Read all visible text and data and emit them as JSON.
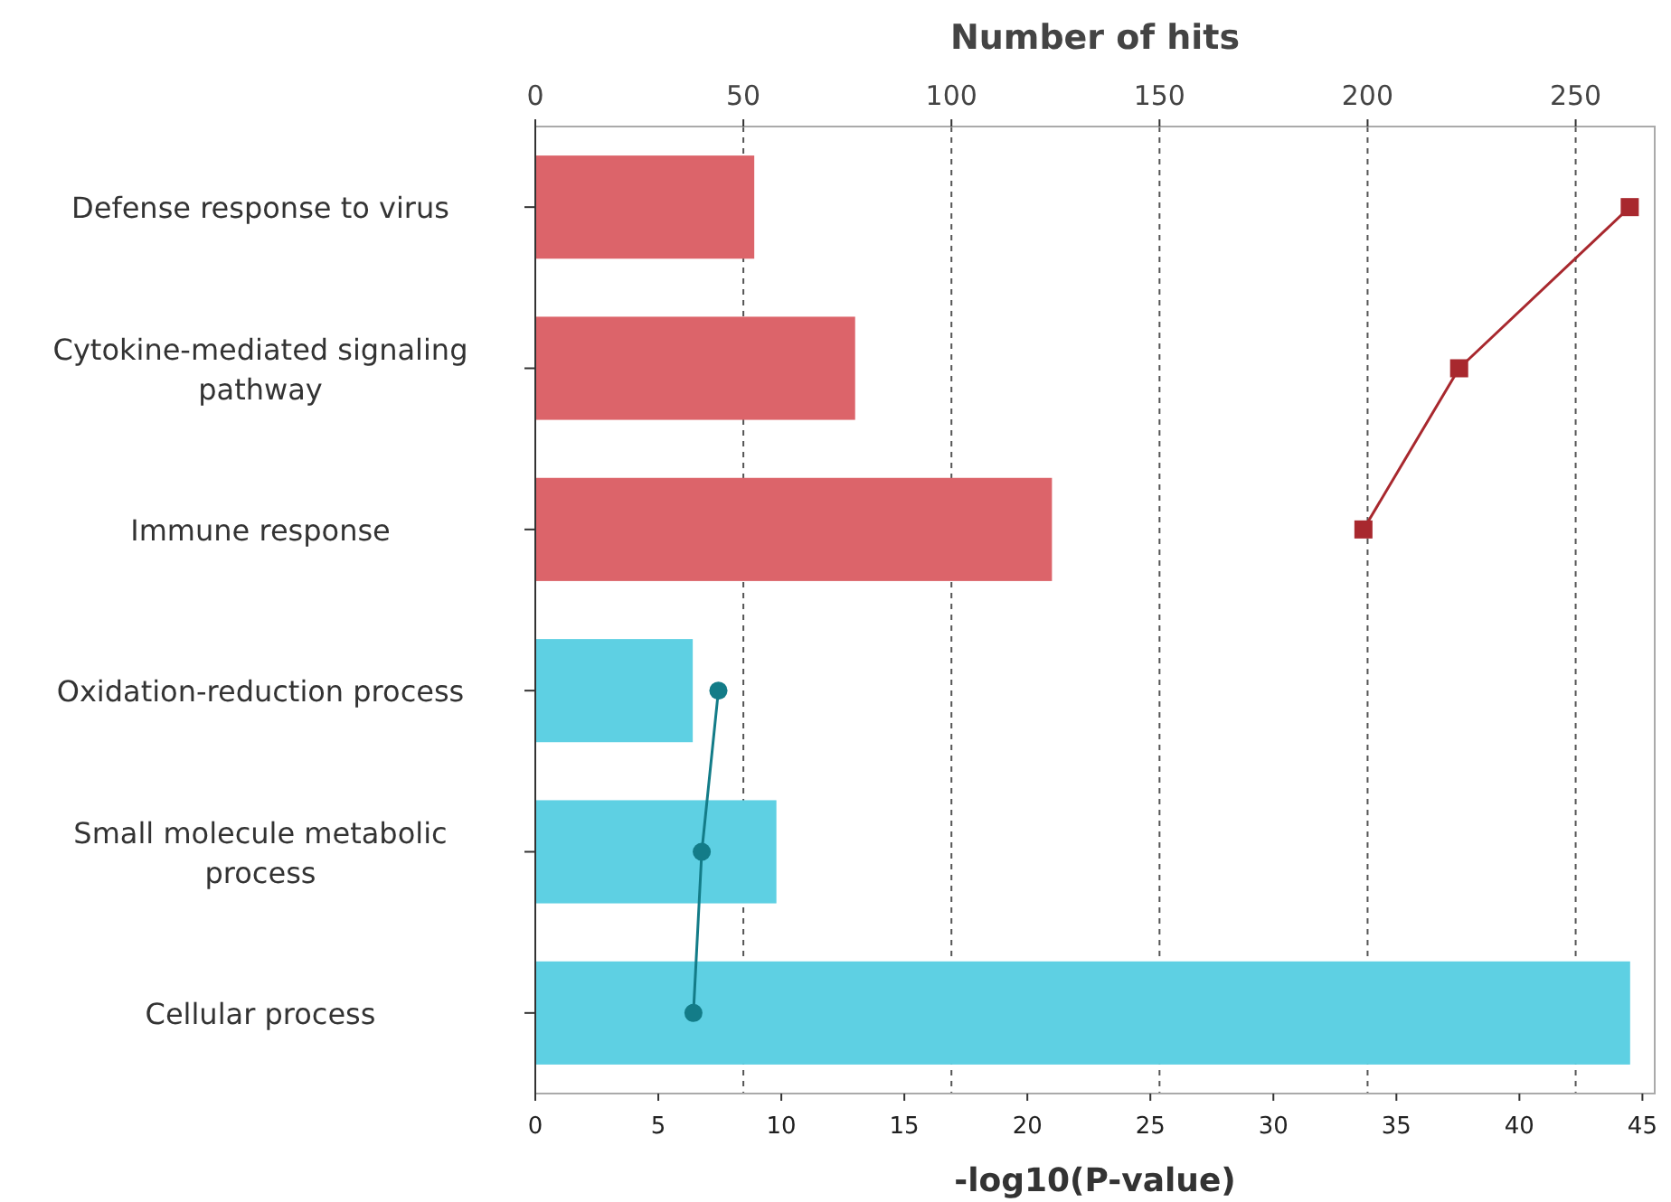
{
  "chart_data": {
    "type": "bar",
    "orientation": "horizontal",
    "xlabel": "-log10(P-value)",
    "x2label": "Number of hits",
    "categories": [
      "Defense response to virus",
      "Cytokine-mediated signaling pathway",
      "Immune response",
      "Oxidation-reduction process",
      "Small molecule metabolic process",
      "Cellular process"
    ],
    "series": [
      {
        "values": [
          8.9,
          13.0,
          21.0,
          6.4,
          9.8,
          44.5
        ],
        "colors": [
          "#dc646a",
          "#dc646a",
          "#dc646a",
          "#5ed0e3",
          "#5ed0e3",
          "#5ed0e3"
        ]
      },
      {
        "type": "line",
        "axis": "x2",
        "color": "#a8282e",
        "marker": "square",
        "values": [
          263,
          222,
          199,
          null,
          null,
          null
        ]
      },
      {
        "type": "line",
        "axis": "x2",
        "color": "#137c88",
        "marker": "circle",
        "values": [
          null,
          null,
          null,
          44,
          40,
          38
        ]
      }
    ],
    "xlim": [
      0,
      45.5
    ],
    "xticks": [
      0,
      5,
      10,
      15,
      20,
      25,
      30,
      35,
      40,
      45
    ],
    "x2lim": [
      0,
      269
    ],
    "x2ticks": [
      0,
      50,
      100,
      150,
      200,
      250
    ],
    "grid": "x2"
  }
}
